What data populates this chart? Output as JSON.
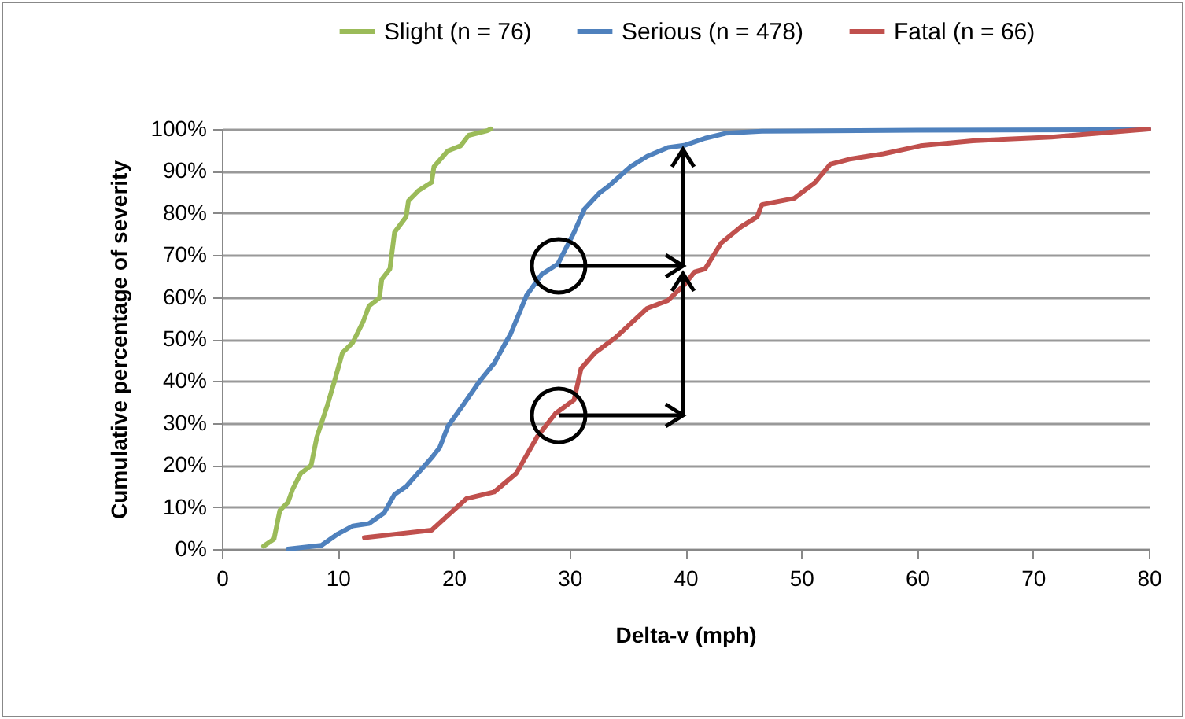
{
  "chart_data": {
    "type": "line",
    "xlabel": "Delta-v (mph)",
    "ylabel": "Cumulative percentage of severity",
    "xlim": [
      0,
      80
    ],
    "xticks": [
      0,
      10,
      20,
      30,
      40,
      50,
      60,
      70,
      80
    ],
    "ylim": [
      0,
      100
    ],
    "yticks": [
      {
        "value": 0,
        "label": "0%"
      },
      {
        "value": 10,
        "label": "10%"
      },
      {
        "value": 20,
        "label": "20%"
      },
      {
        "value": 30,
        "label": "30%"
      },
      {
        "value": 40,
        "label": "40%"
      },
      {
        "value": 50,
        "label": "50%"
      },
      {
        "value": 60,
        "label": "60%"
      },
      {
        "value": 70,
        "label": "70%"
      },
      {
        "value": 80,
        "label": "80%"
      },
      {
        "value": 90,
        "label": "90%"
      },
      {
        "value": 100,
        "label": "100%"
      }
    ],
    "grid": "y",
    "legend": "top",
    "marker": "none",
    "line_style": "solid",
    "series": [
      {
        "name": "Slight (n = 76)",
        "color": "#9bbb59",
        "x": [
          3.6,
          4.5,
          5.0,
          5.7,
          6.1,
          6.8,
          7.7,
          8.2,
          9.1,
          9.7,
          10.4,
          11.3,
          12.2,
          12.7,
          13.6,
          13.8,
          14.5,
          14.9,
          15.9,
          16.1,
          17.0,
          18.1,
          18.3,
          19.5,
          20.6,
          21.3,
          22.9,
          23.2
        ],
        "values": [
          0.7,
          2.4,
          9.2,
          11.1,
          14.2,
          18,
          19.9,
          26.7,
          34.2,
          39.8,
          46.7,
          49.2,
          54.2,
          57.9,
          59.8,
          64.2,
          66.7,
          75.4,
          79.1,
          82.9,
          85.4,
          87.3,
          91,
          94.8,
          96,
          98.5,
          99.6,
          100
        ]
      },
      {
        "name": "Serious (n = 478)",
        "color": "#4f81bd",
        "x": [
          5.7,
          8.6,
          10,
          11.3,
          12.7,
          14,
          14.9,
          15.9,
          18.1,
          18.8,
          19.5,
          20.8,
          22.2,
          23.5,
          24.5,
          24.9,
          26.3,
          27.6,
          29,
          30.4,
          31.3,
          32.6,
          33.5,
          35.3,
          36.7,
          38.5,
          39.9,
          41.7,
          43.5,
          46.6,
          60,
          76,
          80
        ],
        "values": [
          0,
          0.9,
          3.6,
          5.5,
          6.1,
          8.6,
          13,
          14.9,
          21.7,
          24.2,
          29.2,
          34.2,
          39.8,
          44.2,
          49.2,
          51.1,
          60.4,
          65.4,
          67.9,
          75.4,
          81,
          84.8,
          86.7,
          91.1,
          93.5,
          95.6,
          96.1,
          97.8,
          99,
          99.5,
          99.7,
          99.8,
          100
        ]
      },
      {
        "name": "Fatal (n = 66)",
        "color": "#c0504d",
        "x": [
          12.3,
          18.1,
          19.5,
          21.1,
          23.5,
          25.4,
          27.2,
          28.8,
          30.4,
          31,
          32.2,
          34,
          36.7,
          38.5,
          39.9,
          40.8,
          41.7,
          43.1,
          44.8,
          46.2,
          46.6,
          49.4,
          51.2,
          52.5,
          54.3,
          57.1,
          60.3,
          64.8,
          71.6,
          76.1,
          80
        ],
        "values": [
          2.7,
          4.5,
          8,
          12,
          13.6,
          18,
          26.7,
          32.3,
          35.5,
          43,
          46.7,
          50.4,
          57.3,
          59.2,
          62.9,
          66,
          66.7,
          72.9,
          76.7,
          79.1,
          82,
          83.5,
          87.3,
          91.6,
          92.9,
          94.1,
          96,
          97.2,
          98.1,
          99.1,
          100
        ]
      }
    ]
  }
}
